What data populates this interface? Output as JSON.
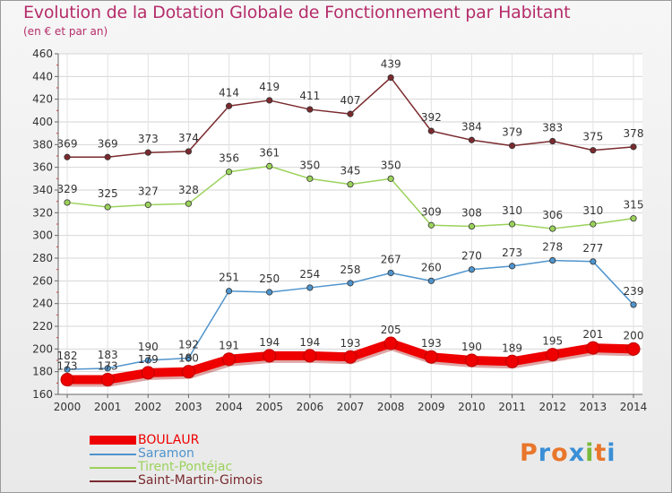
{
  "title": "Evolution de la Dotation Globale de Fonctionnement par Habitant",
  "subtitle": "(en € et par an)",
  "logo": {
    "text": "Proxiti",
    "colors": [
      "#e8762b",
      "#3b8fd6",
      "#e8762b",
      "#3b8fd6",
      "#79b93a",
      "#e8762b",
      "#3b8fd6"
    ]
  },
  "chart_data": {
    "type": "line",
    "x": [
      "2000",
      "2001",
      "2002",
      "2003",
      "2004",
      "2005",
      "2006",
      "2007",
      "2008",
      "2009",
      "2010",
      "2011",
      "2012",
      "2013",
      "2014"
    ],
    "ylim": [
      160,
      460
    ],
    "yticks": [
      160,
      180,
      200,
      220,
      240,
      260,
      280,
      300,
      320,
      340,
      360,
      380,
      400,
      420,
      440,
      460
    ],
    "grid": true,
    "legend_position": "bottom-left",
    "series": [
      {
        "name": "BOULAUR",
        "color": "#ee0000",
        "values": [
          173,
          173,
          179,
          180,
          191,
          194,
          194,
          193,
          205,
          193,
          190,
          189,
          195,
          201,
          200
        ]
      },
      {
        "name": "Saramon",
        "color": "#4f94cd",
        "values": [
          182,
          183,
          190,
          192,
          251,
          250,
          254,
          258,
          267,
          260,
          270,
          273,
          278,
          277,
          239
        ]
      },
      {
        "name": "Tirent-Pontéjac",
        "color": "#9bd25b",
        "values": [
          329,
          325,
          327,
          328,
          356,
          361,
          350,
          345,
          350,
          309,
          308,
          310,
          306,
          310,
          315
        ]
      },
      {
        "name": "Saint-Martin-Gimois",
        "color": "#7a2a2e",
        "values": [
          369,
          369,
          373,
          374,
          414,
          419,
          411,
          407,
          439,
          392,
          384,
          379,
          383,
          375,
          378
        ]
      }
    ]
  }
}
